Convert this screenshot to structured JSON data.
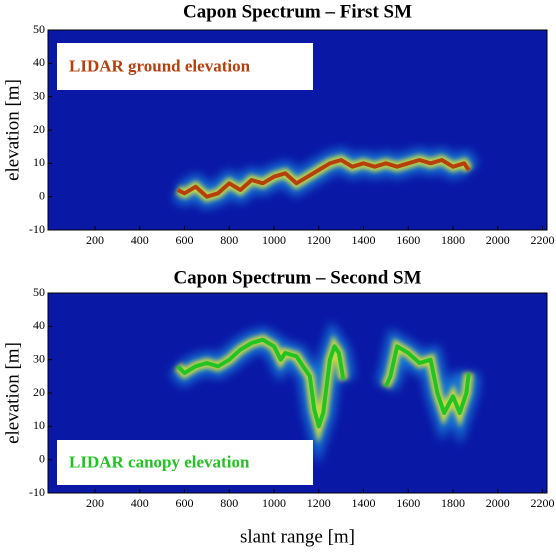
{
  "chart_data": [
    {
      "type": "line",
      "title": "Capon Spectrum – First SM",
      "ylabel": "elevation [m]",
      "xlim": [
        -10,
        2220
      ],
      "ylim": [
        -10,
        50
      ],
      "xticks": [
        200,
        400,
        600,
        800,
        1000,
        1200,
        1400,
        1600,
        1800,
        2000,
        2200
      ],
      "yticks": [
        -10,
        0,
        10,
        20,
        30,
        40,
        50
      ],
      "x": [
        570,
        600,
        650,
        700,
        750,
        800,
        850,
        900,
        950,
        1000,
        1050,
        1100,
        1150,
        1200,
        1250,
        1300,
        1350,
        1400,
        1450,
        1500,
        1550,
        1600,
        1650,
        1700,
        1750,
        1800,
        1850,
        1870
      ],
      "series": [
        {
          "name": "LIDAR ground elevation",
          "color": "#b5400d",
          "values": [
            2,
            1,
            3,
            0,
            1,
            4,
            2,
            5,
            4,
            6,
            7,
            4,
            6,
            8,
            10,
            11,
            9,
            10,
            9,
            10,
            9,
            10,
            11,
            10,
            11,
            9,
            10,
            8
          ]
        }
      ]
    },
    {
      "type": "line",
      "title": "Capon Spectrum – Second SM",
      "ylabel": "elevation [m]",
      "xlabel": "slant range [m]",
      "xlim": [
        -10,
        2220
      ],
      "ylim": [
        -10,
        50
      ],
      "xticks": [
        200,
        400,
        600,
        800,
        1000,
        1200,
        1400,
        1600,
        1800,
        2000,
        2200
      ],
      "yticks": [
        -10,
        0,
        10,
        20,
        30,
        40,
        50
      ],
      "x": [
        570,
        600,
        650,
        700,
        750,
        800,
        850,
        900,
        950,
        1000,
        1030,
        1050,
        1100,
        1130,
        1160,
        1180,
        1200,
        1220,
        1250,
        1270,
        1290,
        1310,
        1400,
        1500,
        1520,
        1550,
        1600,
        1650,
        1700,
        1730,
        1760,
        1800,
        1830,
        1860,
        1870
      ],
      "series": [
        {
          "name": "LIDAR canopy elevation",
          "color": "#22c322",
          "values": [
            28,
            26,
            28,
            29,
            28,
            30,
            33,
            35,
            36,
            34,
            30,
            32,
            31,
            28,
            25,
            15,
            10,
            14,
            30,
            34,
            32,
            24,
            null,
            22,
            25,
            34,
            32,
            29,
            30,
            20,
            14,
            19,
            14,
            20,
            26
          ]
        }
      ]
    }
  ]
}
